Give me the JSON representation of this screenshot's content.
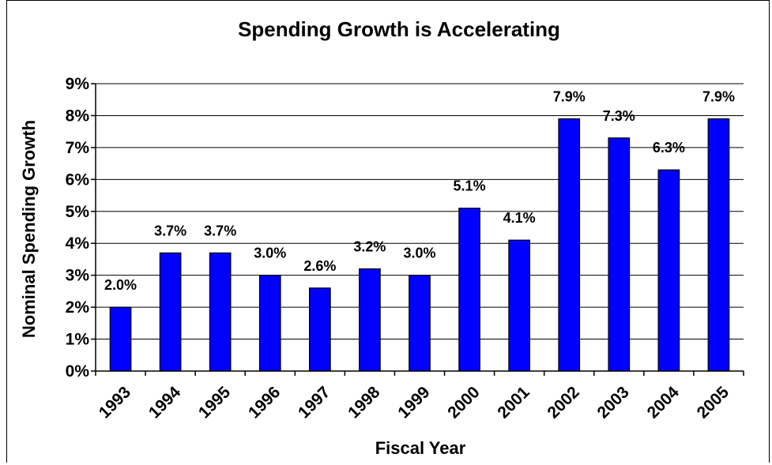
{
  "chart_data": {
    "type": "bar",
    "title": "Spending Growth is Accelerating",
    "xlabel": "Fiscal Year",
    "ylabel": "Nominal Spending Growth",
    "categories": [
      "1993",
      "1994",
      "1995",
      "1996",
      "1997",
      "1998",
      "1999",
      "2000",
      "2001",
      "2002",
      "2003",
      "2004",
      "2005"
    ],
    "values": [
      2.0,
      3.7,
      3.7,
      3.0,
      2.6,
      3.2,
      3.0,
      5.1,
      4.1,
      7.9,
      7.3,
      6.3,
      7.9
    ],
    "value_labels": [
      "2.0%",
      "3.7%",
      "3.7%",
      "3.0%",
      "2.6%",
      "3.2%",
      "3.0%",
      "5.1%",
      "4.1%",
      "7.9%",
      "7.3%",
      "6.3%",
      "7.9%"
    ],
    "yticks": [
      "0%",
      "1%",
      "2%",
      "3%",
      "4%",
      "5%",
      "6%",
      "7%",
      "8%",
      "9%"
    ],
    "ylim": [
      0,
      9
    ],
    "grid": true,
    "legend": "none",
    "bar_color": "#0000ff",
    "bar_edge_color": "#000000"
  }
}
